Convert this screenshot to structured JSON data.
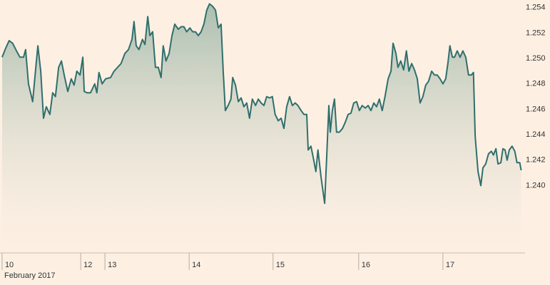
{
  "chart_data": {
    "type": "line",
    "x_label": "February 2017",
    "x": [
      0,
      1.0,
      2.0,
      3.0,
      4.1,
      5.1,
      6.1,
      6.7,
      7.5,
      8.7,
      9.6,
      10.2,
      11.0,
      11.8,
      12.6,
      13.6,
      14.4,
      15.2,
      16.1,
      16.9,
      17.7,
      18.7,
      19.7,
      20.5,
      21.3,
      22.2,
      23.0,
      23.4,
      24.2,
      25.2,
      26.4,
      27.0,
      27.6,
      28.5,
      29.5,
      30.9,
      31.9,
      32.9,
      33.9,
      35.0,
      36.0,
      37.0,
      37.6,
      38.2,
      39.0,
      40.0,
      40.7,
      41.5,
      42.1,
      42.9,
      43.7,
      44.5,
      45.3,
      45.9,
      46.7,
      47.6,
      48.4,
      49.2,
      50.2,
      51.0,
      51.8,
      52.6,
      53.5,
      54.3,
      55.1,
      55.9,
      56.7,
      57.5,
      58.3,
      59.1,
      60.0,
      60.8,
      61.6,
      62.4,
      63.0,
      63.6,
      64.4,
      65.2,
      65.7,
      66.5,
      67.3,
      68.1,
      68.9,
      69.7,
      70.5,
      71.3,
      72.2,
      73.0,
      73.8,
      74.6,
      75.4,
      76.2,
      77.0,
      77.8,
      78.7,
      79.5,
      80.3,
      81.1,
      81.9,
      82.7,
      83.5,
      84.3,
      85.2,
      86.0,
      86.8,
      87.2,
      88.0,
      88.8,
      89.4,
      90.0,
      90.9,
      91.9,
      92.5,
      93.1,
      93.5,
      94.1,
      94.7,
      95.3,
      96.1,
      97.0,
      97.8,
      98.6,
      99.4,
      100.2,
      101.0,
      101.8,
      102.6,
      103.5,
      104.3,
      105.1,
      105.9,
      106.7,
      107.5,
      108.3,
      109.1,
      110.0,
      110.8,
      111.4,
      112.2,
      112.8,
      113.6,
      114.4,
      115.2,
      115.9,
      116.7,
      117.5,
      118.3,
      119.1,
      119.9,
      120.7,
      121.5,
      122.4,
      123.2,
      124.0,
      124.8,
      125.6,
      126.4,
      127.0,
      127.6,
      128.3,
      128.9,
      129.7,
      130.5,
      131.3,
      132.1,
      132.9,
      133.7,
      134.3,
      134.8,
      135.6,
      136.4,
      137.0,
      137.8,
      138.6,
      139.4,
      140.0,
      140.7,
      141.3,
      142.1,
      142.7,
      143.3,
      143.9,
      144.5,
      145.3,
      146.1,
      146.7,
      147.5,
      147.9
    ],
    "series": [
      {
        "color": "#2f6f6d",
        "values": [
          1.2501,
          1.2508,
          1.2514,
          1.2512,
          1.2506,
          1.2501,
          1.2501,
          1.2507,
          1.248,
          1.2466,
          1.2493,
          1.251,
          1.249,
          1.2453,
          1.2462,
          1.2456,
          1.2473,
          1.247,
          1.2493,
          1.2498,
          1.2487,
          1.2474,
          1.2484,
          1.2479,
          1.249,
          1.2487,
          1.2501,
          1.2474,
          1.2473,
          1.2473,
          1.248,
          1.2473,
          1.2489,
          1.248,
          1.2484,
          1.2485,
          1.249,
          1.2493,
          1.2496,
          1.2504,
          1.2507,
          1.2515,
          1.2529,
          1.251,
          1.2507,
          1.2515,
          1.2511,
          1.2533,
          1.2518,
          1.2521,
          1.2493,
          1.2493,
          1.2485,
          1.251,
          1.2498,
          1.2504,
          1.2518,
          1.2527,
          1.2523,
          1.2525,
          1.2525,
          1.2521,
          1.2524,
          1.2521,
          1.2521,
          1.2518,
          1.2521,
          1.2527,
          1.2538,
          1.2543,
          1.2541,
          1.2538,
          1.2524,
          1.2527,
          1.249,
          1.2459,
          1.2463,
          1.2468,
          1.2485,
          1.2479,
          1.2466,
          1.2469,
          1.2462,
          1.2465,
          1.2453,
          1.2468,
          1.2463,
          1.2468,
          1.2465,
          1.2463,
          1.247,
          1.2469,
          1.247,
          1.2456,
          1.2451,
          1.2453,
          1.2445,
          1.2462,
          1.247,
          1.2463,
          1.2465,
          1.2463,
          1.2459,
          1.2456,
          1.2456,
          1.2428,
          1.2431,
          1.242,
          1.2411,
          1.2428,
          1.2406,
          1.2386,
          1.2423,
          1.2463,
          1.2442,
          1.2459,
          1.2468,
          1.2442,
          1.2442,
          1.2445,
          1.245,
          1.2456,
          1.2457,
          1.2465,
          1.2466,
          1.2459,
          1.2463,
          1.2461,
          1.2463,
          1.2459,
          1.2465,
          1.2462,
          1.2468,
          1.2459,
          1.247,
          1.2484,
          1.249,
          1.2512,
          1.2504,
          1.2493,
          1.2498,
          1.2491,
          1.2506,
          1.249,
          1.2496,
          1.2491,
          1.2484,
          1.2465,
          1.247,
          1.2479,
          1.2482,
          1.249,
          1.2487,
          1.2487,
          1.2484,
          1.248,
          1.2484,
          1.2496,
          1.251,
          1.2501,
          1.2501,
          1.2506,
          1.2501,
          1.2506,
          1.2501,
          1.2487,
          1.2487,
          1.2489,
          1.2439,
          1.2411,
          1.24,
          1.2414,
          1.2417,
          1.2425,
          1.2427,
          1.2424,
          1.2429,
          1.2417,
          1.2418,
          1.2429,
          1.2428,
          1.242,
          1.2428,
          1.2431,
          1.2427,
          1.2418,
          1.2418,
          1.2412
        ]
      }
    ],
    "xlim": [
      -0.6,
      149
    ],
    "ylim": [
      1.2347,
      1.2546
    ],
    "xticks": [
      {
        "value": 0,
        "label": "10"
      },
      {
        "value": 22.4,
        "label": "12"
      },
      {
        "value": 29.3,
        "label": "13"
      },
      {
        "value": 53.3,
        "label": "14"
      },
      {
        "value": 77.2,
        "label": "15"
      },
      {
        "value": 101.6,
        "label": "16"
      },
      {
        "value": 125.6,
        "label": "17"
      }
    ],
    "yticks": [
      {
        "value": 1.24,
        "label": "1.240"
      },
      1.242,
      1.244,
      1.246,
      1.248,
      {
        "value": 1.25,
        "label": "1.250"
      },
      1.252,
      1.254
    ]
  }
}
